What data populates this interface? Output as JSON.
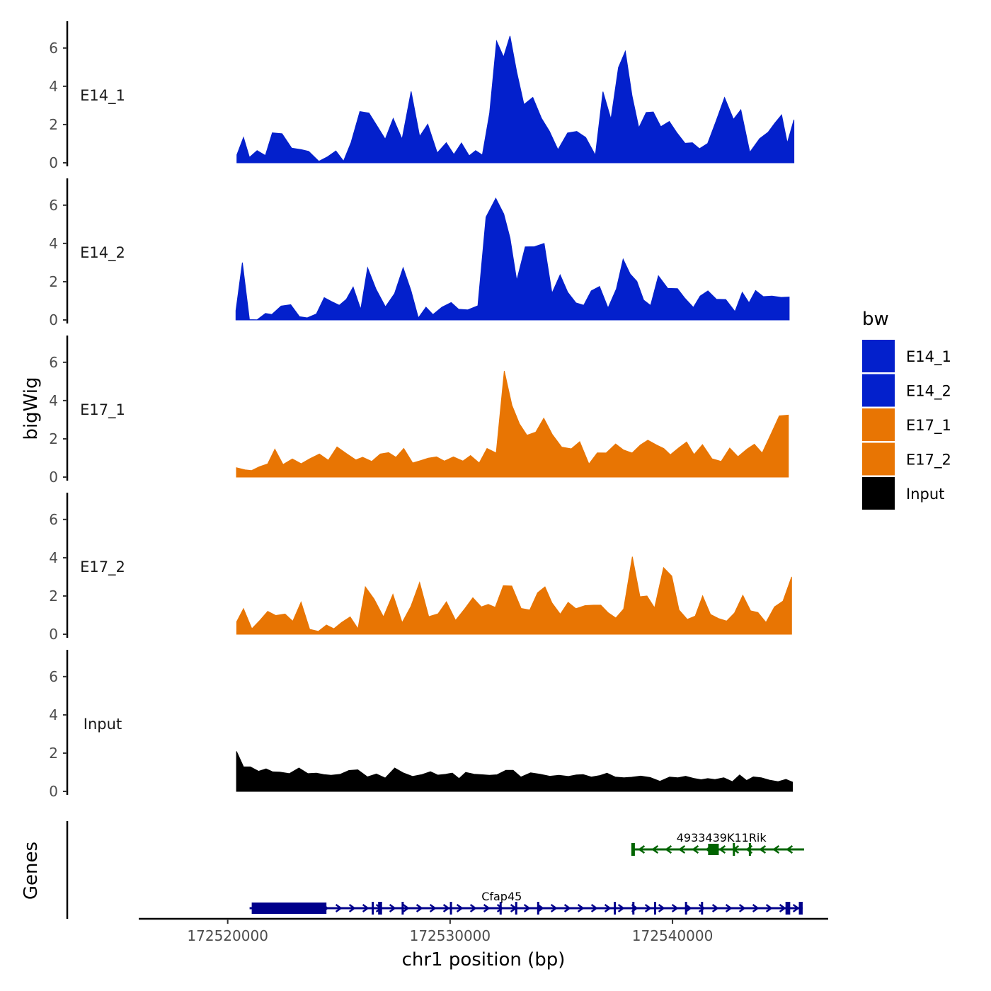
{
  "chart_data": {
    "type": "area",
    "title": "",
    "xlabel": "chr1 position (bp)",
    "ylabel": "bigWig",
    "genes_label": "Genes",
    "xlim": [
      172516000,
      172547000
    ],
    "ylim": [
      0,
      7.4
    ],
    "x_ticks": [
      172520000,
      172530000,
      172540000
    ],
    "x_tick_labels": [
      "172520000",
      "172530000",
      "172540000"
    ],
    "y_ticks": [
      0,
      2,
      4,
      6
    ],
    "y_tick_labels": [
      "0",
      "2",
      "4",
      "6"
    ],
    "legend": {
      "title": "bw",
      "position": "right",
      "items": [
        {
          "label": "E14_1",
          "color": "#0320CC"
        },
        {
          "label": "E14_2",
          "color": "#0320CC"
        },
        {
          "label": "E17_1",
          "color": "#E87503"
        },
        {
          "label": "E17_2",
          "color": "#E87503"
        },
        {
          "label": "Input",
          "color": "#000000"
        }
      ]
    },
    "series": [
      {
        "name": "E14_1",
        "label": "E14_1",
        "color": "#0320CC",
        "x": [
          172520416,
          172520709,
          172520979,
          172521323,
          172521695,
          172522007,
          172522441,
          172522875,
          172523307,
          172523642,
          172524101,
          172524491,
          172524863,
          172525207,
          172525545,
          172525943,
          172526353,
          172526681,
          172527081,
          172527441,
          172527840,
          172528247,
          172528633,
          172528996,
          172529423,
          172529829,
          172530169,
          172530510,
          172530858,
          172531148,
          172531449,
          172531778,
          172532089,
          172532405,
          172532694,
          172532993,
          172533319,
          172533717,
          172534108,
          172534465,
          172534850,
          172535280,
          172535696,
          172536095,
          172536532,
          172536872,
          172537232,
          172537571,
          172537878,
          172538180,
          172538486,
          172538818,
          172539137,
          172539472,
          172539857,
          172540198,
          172540563,
          172540892,
          172541212,
          172541580,
          172541938,
          172542339,
          172542742,
          172543073,
          172543477,
          172543917,
          172544298,
          172544596,
          172544906,
          172545159,
          172545458
        ],
        "values": [
          0.42,
          1.33,
          0.29,
          0.64,
          0.38,
          1.57,
          1.52,
          0.77,
          0.69,
          0.6,
          0.08,
          0.32,
          0.62,
          0.09,
          1.06,
          2.68,
          2.6,
          1.99,
          1.24,
          2.32,
          1.24,
          3.73,
          1.38,
          2.02,
          0.52,
          1.05,
          0.44,
          1.04,
          0.37,
          0.64,
          0.41,
          2.6,
          6.36,
          5.53,
          6.63,
          4.76,
          3.05,
          3.42,
          2.33,
          1.65,
          0.69,
          1.56,
          1.64,
          1.33,
          0.4,
          3.72,
          2.29,
          4.98,
          5.83,
          3.5,
          1.83,
          2.63,
          2.66,
          1.89,
          2.16,
          1.57,
          1.02,
          1.05,
          0.74,
          1.01,
          2.12,
          3.41,
          2.27,
          2.77,
          0.55,
          1.26,
          1.6,
          2.07,
          2.51,
          1.04,
          2.25
        ]
      },
      {
        "name": "E14_2",
        "label": "E14_2",
        "color": "#0320CC",
        "x": [
          172520371,
          172520661,
          172520977,
          172521324,
          172521698,
          172521984,
          172522402,
          172522834,
          172523231,
          172523578,
          172523989,
          172524340,
          172524675,
          172525017,
          172525334,
          172525641,
          172525980,
          172526289,
          172526666,
          172527093,
          172527504,
          172527889,
          172528237,
          172528571,
          172528915,
          172529227,
          172529631,
          172530049,
          172530382,
          172530794,
          172531247,
          172531615,
          172532055,
          172532415,
          172532693,
          172532997,
          172533379,
          172533796,
          172534228,
          172534581,
          172534946,
          172535289,
          172535660,
          172536006,
          172536346,
          172536719,
          172537101,
          172537474,
          172537780,
          172538094,
          172538398,
          172538701,
          172539013,
          172539366,
          172539788,
          172540223,
          172540562,
          172540936,
          172541242,
          172541593,
          172541978,
          172542393,
          172542809,
          172543136,
          172543438,
          172543735,
          172544084,
          172544472,
          172544886,
          172545245
        ],
        "values": [
          0.49,
          3.0,
          0.02,
          0.01,
          0.34,
          0.29,
          0.73,
          0.8,
          0.17,
          0.11,
          0.32,
          1.17,
          0.96,
          0.77,
          1.08,
          1.72,
          0.56,
          2.73,
          1.62,
          0.69,
          1.38,
          2.73,
          1.55,
          0.11,
          0.67,
          0.28,
          0.67,
          0.91,
          0.56,
          0.53,
          0.74,
          5.38,
          6.36,
          5.54,
          4.29,
          2.06,
          3.82,
          3.83,
          4.0,
          1.4,
          2.36,
          1.45,
          0.89,
          0.77,
          1.52,
          1.75,
          0.63,
          1.62,
          3.18,
          2.41,
          2.02,
          1.04,
          0.76,
          2.31,
          1.65,
          1.64,
          1.13,
          0.66,
          1.25,
          1.52,
          1.08,
          1.07,
          0.44,
          1.45,
          0.9,
          1.54,
          1.22,
          1.25,
          1.18,
          1.2
        ]
      },
      {
        "name": "E17_1",
        "label": "E17_1",
        "color": "#E87503",
        "x": [
          172520393,
          172520776,
          172521066,
          172521426,
          172521796,
          172522121,
          172522489,
          172522905,
          172523305,
          172523676,
          172524121,
          172524522,
          172524916,
          172525341,
          172525763,
          172526066,
          172526477,
          172526859,
          172527235,
          172527564,
          172527915,
          172528316,
          172528658,
          172529017,
          172529389,
          172529743,
          172530149,
          172530578,
          172530916,
          172531309,
          172531658,
          172532072,
          172532435,
          172532781,
          172533118,
          172533453,
          172533849,
          172534213,
          172534592,
          172535017,
          172535446,
          172535828,
          172536243,
          172536618,
          172537017,
          172537441,
          172537797,
          172538184,
          172538552,
          172538889,
          172539278,
          172539606,
          172539902,
          172540280,
          172540635,
          172540969,
          172541349,
          172541778,
          172542189,
          172542574,
          172542943,
          172543366,
          172543680,
          172544029,
          172544409,
          172544802,
          172545211
        ],
        "values": [
          0.49,
          0.38,
          0.34,
          0.54,
          0.69,
          1.46,
          0.66,
          0.95,
          0.7,
          0.95,
          1.21,
          0.88,
          1.58,
          1.23,
          0.9,
          1.04,
          0.82,
          1.21,
          1.28,
          1.04,
          1.5,
          0.74,
          0.86,
          0.99,
          1.06,
          0.84,
          1.06,
          0.84,
          1.13,
          0.74,
          1.5,
          1.26,
          5.55,
          3.76,
          2.79,
          2.19,
          2.35,
          3.08,
          2.24,
          1.57,
          1.48,
          1.85,
          0.69,
          1.27,
          1.26,
          1.73,
          1.42,
          1.26,
          1.68,
          1.93,
          1.68,
          1.5,
          1.17,
          1.53,
          1.84,
          1.18,
          1.7,
          0.96,
          0.82,
          1.52,
          1.07,
          1.48,
          1.72,
          1.26,
          2.21,
          3.2,
          3.24
        ]
      },
      {
        "name": "E17_2",
        "label": "E17_2",
        "color": "#E87503",
        "x": [
          172520406,
          172520710,
          172521087,
          172521449,
          172521798,
          172522158,
          172522580,
          172522926,
          172523298,
          172523686,
          172524076,
          172524437,
          172524776,
          172525129,
          172525506,
          172525856,
          172526187,
          172526584,
          172527003,
          172527428,
          172527842,
          172528233,
          172528629,
          172529040,
          172529458,
          172529836,
          172530245,
          172530669,
          172531021,
          172531406,
          172531715,
          172532028,
          172532390,
          172532774,
          172533194,
          172533582,
          172533933,
          172534266,
          172534580,
          172534954,
          172535306,
          172535654,
          172536070,
          172536452,
          172536776,
          172537112,
          172537451,
          172537802,
          172538192,
          172538538,
          172538852,
          172539193,
          172539596,
          172539966,
          172540293,
          172540662,
          172541020,
          172541354,
          172541708,
          172542074,
          172542434,
          172542785,
          172543163,
          172543511,
          172543841,
          172544201,
          172544584,
          172544967,
          172545354
        ],
        "values": [
          0.66,
          1.34,
          0.29,
          0.73,
          1.2,
          0.98,
          1.06,
          0.68,
          1.68,
          0.26,
          0.15,
          0.48,
          0.29,
          0.62,
          0.91,
          0.29,
          2.48,
          1.84,
          0.91,
          2.09,
          0.61,
          1.45,
          2.71,
          0.92,
          1.07,
          1.7,
          0.73,
          1.35,
          1.91,
          1.43,
          1.56,
          1.41,
          2.54,
          2.52,
          1.35,
          1.27,
          2.17,
          2.48,
          1.64,
          1.05,
          1.67,
          1.34,
          1.5,
          1.52,
          1.52,
          1.12,
          0.85,
          1.32,
          4.05,
          1.96,
          2.0,
          1.38,
          3.48,
          3.04,
          1.27,
          0.78,
          0.95,
          2.01,
          1.04,
          0.82,
          0.69,
          1.11,
          2.04,
          1.23,
          1.14,
          0.62,
          1.43,
          1.73,
          3.0
        ]
      },
      {
        "name": "Input",
        "label": "Input",
        "color": "#000000",
        "x": [
          172520394,
          172520715,
          172521018,
          172521389,
          172521727,
          172522023,
          172522344,
          172522771,
          172523201,
          172523607,
          172523987,
          172524322,
          172524646,
          172525052,
          172525450,
          172525847,
          172526283,
          172526683,
          172527082,
          172527509,
          172527892,
          172528311,
          172528737,
          172529116,
          172529443,
          172529794,
          172530099,
          172530401,
          172530702,
          172531081,
          172531463,
          172531769,
          172532110,
          172532505,
          172532837,
          172533183,
          172533619,
          172534039,
          172534482,
          172534895,
          172535318,
          172535675,
          172535981,
          172536352,
          172536714,
          172537053,
          172537426,
          172537819,
          172538160,
          172538571,
          172538996,
          172539435,
          172539869,
          172540243,
          172540590,
          172540946,
          172541288,
          172541587,
          172541907,
          172542307,
          172542689,
          172543019,
          172543334,
          172543633,
          172543988,
          172544363,
          172544747,
          172545100,
          172545392
        ],
        "values": [
          2.09,
          1.28,
          1.28,
          1.05,
          1.18,
          1.02,
          1.01,
          0.93,
          1.22,
          0.93,
          0.95,
          0.88,
          0.84,
          0.89,
          1.09,
          1.13,
          0.76,
          0.91,
          0.7,
          1.22,
          0.97,
          0.78,
          0.88,
          1.03,
          0.85,
          0.89,
          0.96,
          0.67,
          0.99,
          0.9,
          0.87,
          0.84,
          0.87,
          1.1,
          1.1,
          0.75,
          0.97,
          0.9,
          0.79,
          0.84,
          0.78,
          0.86,
          0.88,
          0.75,
          0.82,
          0.95,
          0.75,
          0.71,
          0.74,
          0.8,
          0.73,
          0.53,
          0.75,
          0.71,
          0.79,
          0.68,
          0.61,
          0.67,
          0.62,
          0.71,
          0.51,
          0.86,
          0.57,
          0.76,
          0.71,
          0.59,
          0.51,
          0.63,
          0.49
        ]
      }
    ],
    "genes": [
      {
        "name": "4933439K11Rik",
        "label": "4933439K11Rik",
        "strand": "-",
        "color": "#006400",
        "start": 172538228,
        "end": 172545916,
        "exons": [
          [
            172538148,
            172538308
          ],
          [
            172541600,
            172542080
          ],
          [
            172542712,
            172542792
          ],
          [
            172543432,
            172543512
          ]
        ]
      },
      {
        "name": "Cfap45",
        "label": "Cfap45",
        "strand": "+",
        "color": "#00008B",
        "start": 172520984,
        "end": 172545852,
        "exons": [
          [
            172521080,
            172524440
          ],
          [
            172526476,
            172526540
          ],
          [
            172526764,
            172526940
          ],
          [
            172527820,
            172527900
          ],
          [
            172529990,
            172530086
          ],
          [
            172532224,
            172532320
          ],
          [
            172532924,
            172533020
          ],
          [
            172533912,
            172534008
          ],
          [
            172537360,
            172537440
          ],
          [
            172538192,
            172538288
          ],
          [
            172539168,
            172539248
          ],
          [
            172540560,
            172540640
          ],
          [
            172541280,
            172541360
          ],
          [
            172545080,
            172545292
          ],
          [
            172545680,
            172545852
          ]
        ]
      }
    ]
  }
}
